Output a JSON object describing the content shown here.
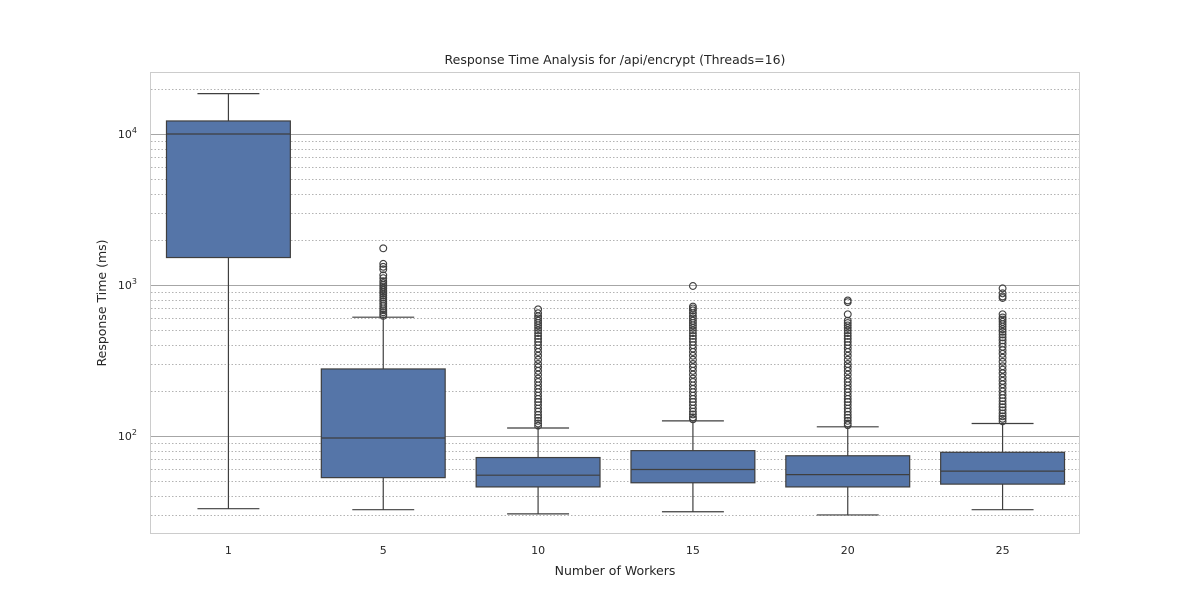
{
  "chart_data": {
    "type": "box",
    "title": "Response Time Analysis for /api/encrypt (Threads=16)",
    "xlabel": "Number of Workers",
    "ylabel": "Response Time (ms)",
    "yscale": "log",
    "ylim": [
      22,
      26000
    ],
    "grid": "both major and minor on y",
    "categories": [
      "1",
      "5",
      "10",
      "15",
      "20",
      "25"
    ],
    "y_ticks": [
      {
        "base": "10",
        "exp": "2",
        "value": 100
      },
      {
        "base": "10",
        "exp": "3",
        "value": 1000
      },
      {
        "base": "10",
        "exp": "4",
        "value": 10000
      }
    ],
    "box_color": "#5575a8",
    "boxes": [
      {
        "category": "1",
        "whisker_low": 33,
        "q1": 1520,
        "median": 10000,
        "q3": 12200,
        "whisker_high": 18500,
        "outliers": []
      },
      {
        "category": "5",
        "whisker_low": 32.5,
        "q1": 53,
        "median": 97,
        "q3": 278,
        "whisker_high": 612,
        "outliers": [
          1750,
          1380,
          1320,
          1270,
          1160,
          1110,
          1060,
          1030,
          1000,
          975,
          950,
          925,
          900,
          875,
          850,
          825,
          800,
          775,
          750,
          725,
          700,
          680,
          660,
          640,
          625
        ]
      },
      {
        "category": "10",
        "whisker_low": 30.5,
        "q1": 46,
        "median": 55,
        "q3": 72,
        "whisker_high": 113,
        "outliers": [
          690,
          650,
          620,
          600,
          580,
          560,
          540,
          520,
          500,
          480,
          460,
          440,
          420,
          400,
          380,
          360,
          340,
          320,
          300,
          285,
          270,
          255,
          240,
          228,
          216,
          205,
          195,
          185,
          176,
          168,
          160,
          152,
          145,
          138,
          132,
          126,
          121,
          117
        ]
      },
      {
        "category": "15",
        "whisker_low": 31.5,
        "q1": 49,
        "median": 60,
        "q3": 80,
        "whisker_high": 126,
        "outliers": [
          985,
          720,
          700,
          680,
          650,
          620,
          600,
          580,
          560,
          540,
          520,
          500,
          480,
          460,
          440,
          420,
          400,
          380,
          360,
          340,
          320,
          300,
          285,
          270,
          255,
          240,
          228,
          216,
          205,
          195,
          185,
          176,
          168,
          160,
          152,
          145,
          139,
          133,
          129
        ]
      },
      {
        "category": "20",
        "whisker_low": 30,
        "q1": 46,
        "median": 55.5,
        "q3": 74,
        "whisker_high": 115,
        "outliers": [
          790,
          770,
          640,
          580,
          560,
          540,
          520,
          500,
          480,
          460,
          440,
          420,
          400,
          380,
          360,
          340,
          320,
          300,
          285,
          270,
          255,
          240,
          228,
          216,
          205,
          195,
          185,
          176,
          168,
          160,
          152,
          145,
          138,
          132,
          126,
          121,
          118
        ]
      },
      {
        "category": "25",
        "whisker_low": 32.5,
        "q1": 48,
        "median": 58.5,
        "q3": 78,
        "whisker_high": 121,
        "outliers": [
          950,
          880,
          840,
          820,
          640,
          610,
          590,
          570,
          550,
          530,
          510,
          490,
          470,
          450,
          430,
          410,
          390,
          370,
          350,
          330,
          310,
          290,
          275,
          260,
          245,
          232,
          220,
          208,
          197,
          187,
          178,
          170,
          162,
          155,
          148,
          141,
          135,
          130,
          125
        ]
      }
    ]
  }
}
